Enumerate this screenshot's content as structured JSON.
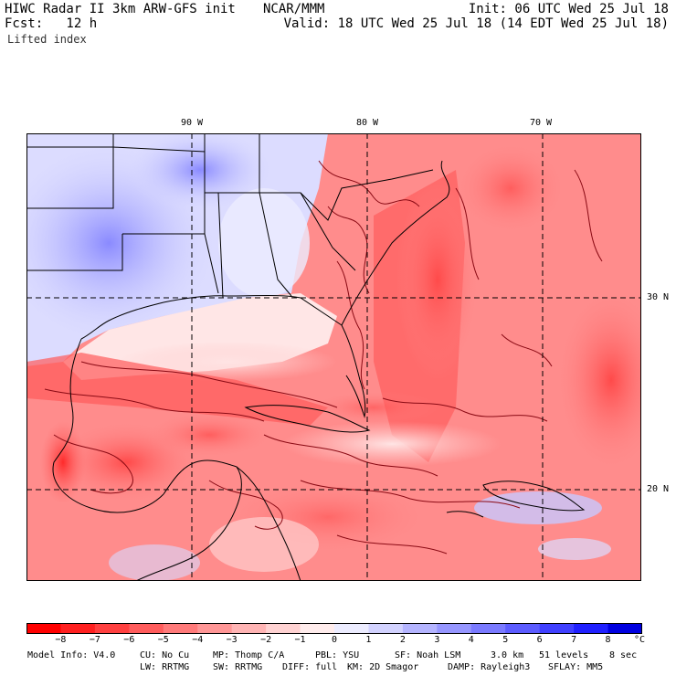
{
  "header": {
    "title_left": "HIWC Radar II 3km ARW-GFS init",
    "org": "NCAR/MMM",
    "init": "Init: 06 UTC Wed 25 Jul 18",
    "fcst": "Fcst:   12 h",
    "valid": "Valid: 18 UTC Wed 25 Jul 18 (14 EDT Wed 25 Jul 18)",
    "field": "Lifted index"
  },
  "map": {
    "lon_labels": [
      "90 W",
      "80 W",
      "70 W"
    ],
    "lat_labels": [
      "30 N",
      "20 N"
    ]
  },
  "colorbar": {
    "unit": "°C",
    "ticks": [
      "−8",
      "−7",
      "−6",
      "−5",
      "−4",
      "−3",
      "−2",
      "−1",
      "0",
      "1",
      "2",
      "3",
      "4",
      "5",
      "6",
      "7",
      "8"
    ],
    "colors": [
      "#ff0000",
      "#ff2020",
      "#ff4040",
      "#ff5c5c",
      "#ff7a7a",
      "#ff9696",
      "#ffb4b4",
      "#ffd2d2",
      "#ffecec",
      "#ececff",
      "#d2d2ff",
      "#b4b4ff",
      "#9696ff",
      "#7a7aff",
      "#5c5cff",
      "#4040ff",
      "#2020ff",
      "#0000e0"
    ]
  },
  "footer": {
    "line1": {
      "model": "Model Info: V4.0",
      "cu": "CU: No Cu",
      "mp": "MP: Thomp C/A",
      "pbl": "PBL: YSU",
      "sf": "SF: Noah LSM",
      "res": "3.0 km",
      "levels": "51 levels",
      "dt": "8 sec"
    },
    "line2": {
      "lw": "LW: RRTMG",
      "sw": "SW: RRTMG",
      "diff": "DIFF: full",
      "km": "KM: 2D Smagor",
      "damp": "DAMP: Rayleigh3",
      "sflay": "SFLAY: MM5"
    }
  }
}
